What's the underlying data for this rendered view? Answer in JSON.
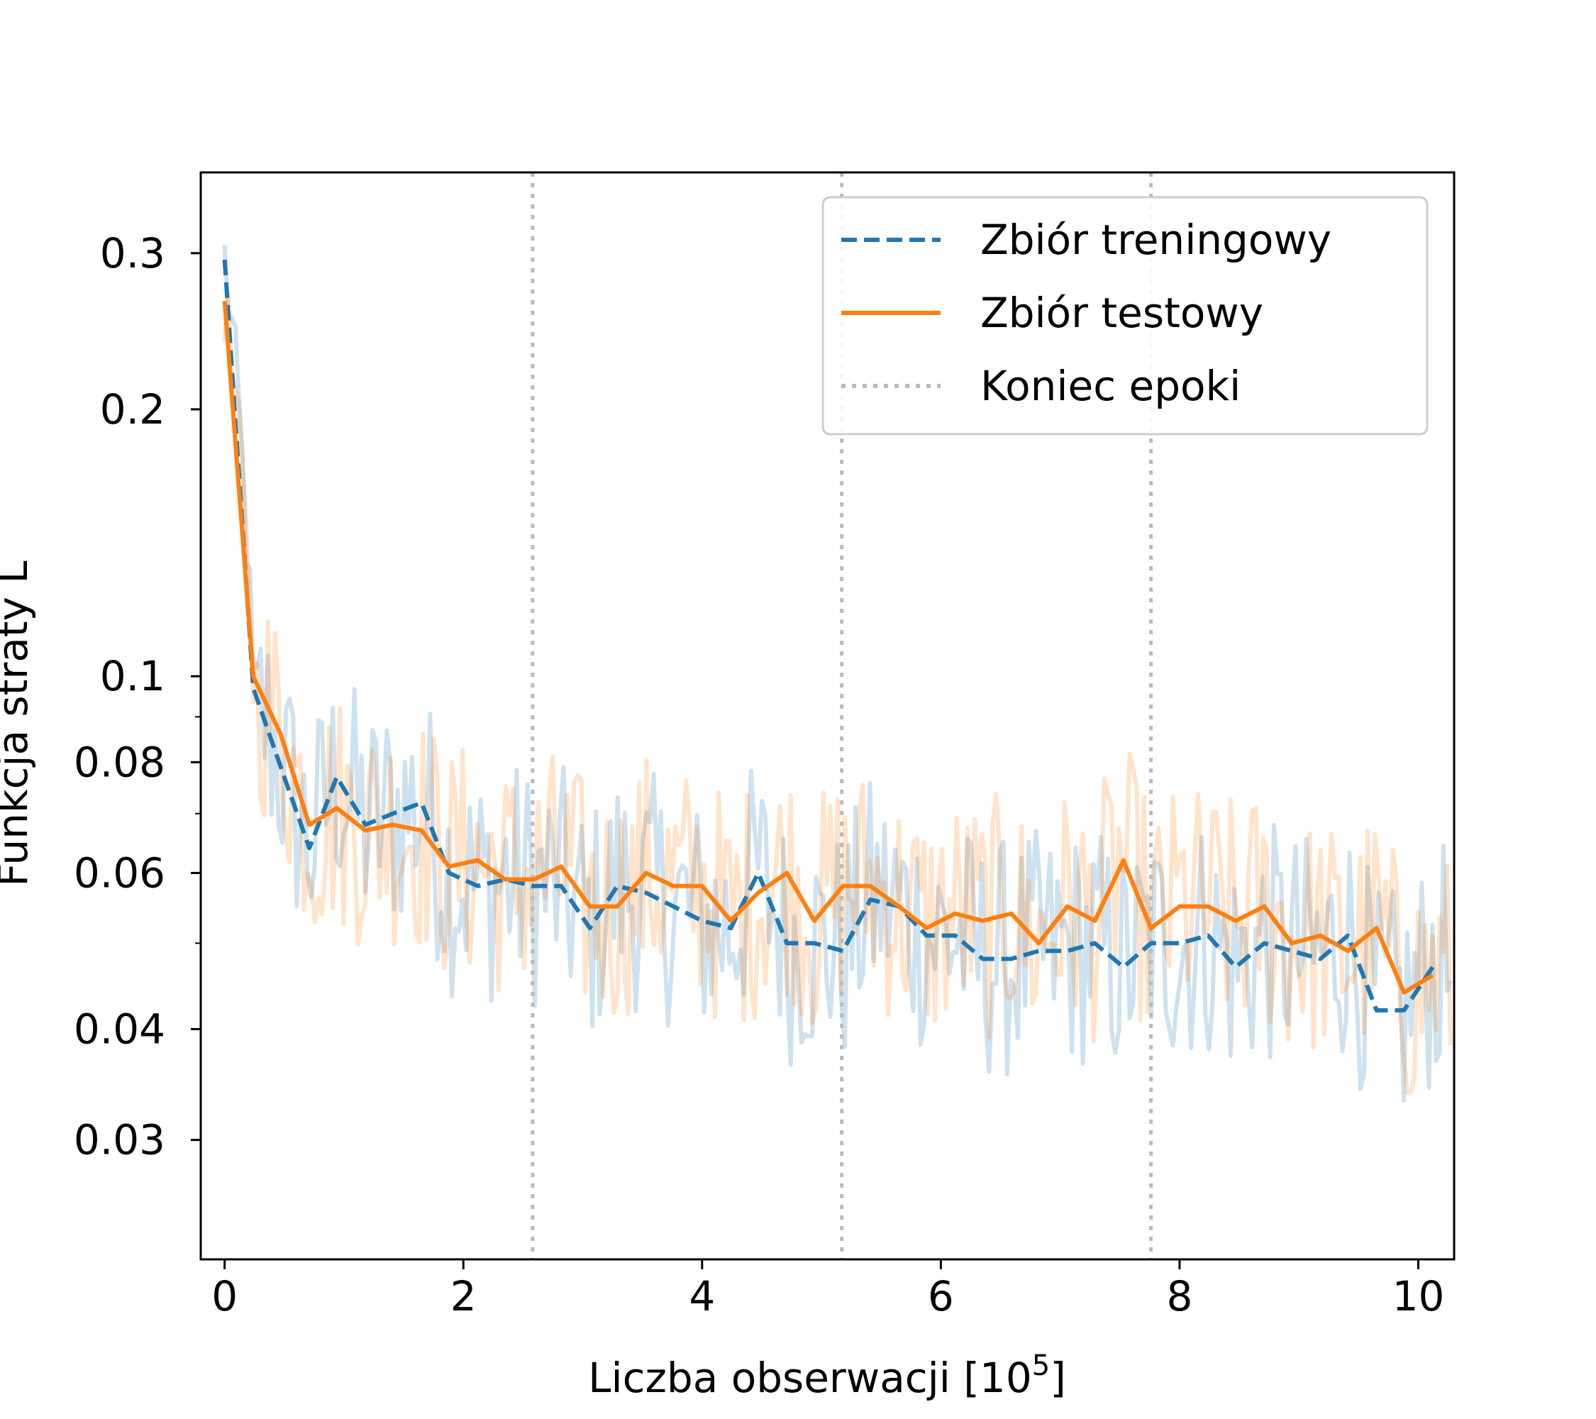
{
  "chart_data": {
    "type": "line",
    "title": "",
    "xlabel": "Liczba obserwacji [10",
    "xlabel_sup": "5",
    "xlabel_close": "]",
    "ylabel": "Funkcja straty L",
    "yscale": "log",
    "xlim": [
      -0.2,
      10.3
    ],
    "ylim": [
      0.022,
      0.37
    ],
    "xticks": [
      0,
      2,
      4,
      6,
      8,
      10
    ],
    "xtick_labels": [
      "0",
      "2",
      "4",
      "6",
      "8",
      "10"
    ],
    "yticks": [
      0.03,
      0.04,
      0.06,
      0.08,
      0.1,
      0.2,
      0.3
    ],
    "ytick_labels": [
      "0.03",
      "0.04",
      "0.06",
      "0.08",
      "0.1",
      "0.2",
      "0.3"
    ],
    "yminor_ticks": [
      0.05,
      0.07,
      0.09
    ],
    "grid": false,
    "legend_position": "top-right",
    "epoch_ends": [
      2.58,
      5.17,
      7.76
    ],
    "x": [
      0.0,
      0.24,
      0.47,
      0.71,
      0.94,
      1.18,
      1.41,
      1.65,
      1.88,
      2.12,
      2.35,
      2.59,
      2.82,
      3.06,
      3.29,
      3.53,
      3.76,
      4.0,
      4.24,
      4.47,
      4.71,
      4.94,
      5.18,
      5.41,
      5.65,
      5.88,
      6.12,
      6.35,
      6.59,
      6.82,
      7.06,
      7.29,
      7.53,
      7.76,
      8.0,
      8.24,
      8.47,
      8.71,
      8.94,
      9.18,
      9.41,
      9.65,
      9.88,
      10.12
    ],
    "series": [
      {
        "name": "Zbiór treningowy",
        "style": "dashed",
        "color": "#1f77b4",
        "values": [
          0.295,
          0.097,
          0.079,
          0.064,
          0.077,
          0.068,
          0.07,
          0.072,
          0.06,
          0.058,
          0.059,
          0.058,
          0.058,
          0.052,
          0.058,
          0.057,
          0.055,
          0.053,
          0.052,
          0.06,
          0.05,
          0.05,
          0.049,
          0.056,
          0.055,
          0.051,
          0.051,
          0.048,
          0.048,
          0.049,
          0.049,
          0.05,
          0.047,
          0.05,
          0.05,
          0.051,
          0.047,
          0.05,
          0.049,
          0.048,
          0.051,
          0.042,
          0.042,
          0.047
        ]
      },
      {
        "name": "Zbiór testowy",
        "style": "solid",
        "color": "#ff7f0e",
        "values": [
          0.265,
          0.1,
          0.086,
          0.068,
          0.071,
          0.067,
          0.068,
          0.067,
          0.061,
          0.062,
          0.059,
          0.059,
          0.061,
          0.055,
          0.055,
          0.06,
          0.058,
          0.058,
          0.053,
          0.057,
          0.06,
          0.053,
          0.058,
          0.058,
          0.055,
          0.052,
          0.054,
          0.053,
          0.054,
          0.05,
          0.055,
          0.053,
          0.062,
          0.052,
          0.055,
          0.055,
          0.053,
          0.055,
          0.05,
          0.051,
          0.049,
          0.052,
          0.044,
          0.046
        ]
      }
    ],
    "legend": [
      {
        "label": "Zbiór treningowy",
        "style": "dashed",
        "color": "#1f77b4"
      },
      {
        "label": "Zbiór testowy",
        "style": "solid",
        "color": "#ff7f0e"
      },
      {
        "label": "Koniec epoki",
        "style": "dotted",
        "color": "#bbbbbb"
      }
    ],
    "noise_band": {
      "train_color": "#1f77b4",
      "test_color": "#ff7f0e",
      "opacity": 0.22,
      "points": 340
    }
  }
}
